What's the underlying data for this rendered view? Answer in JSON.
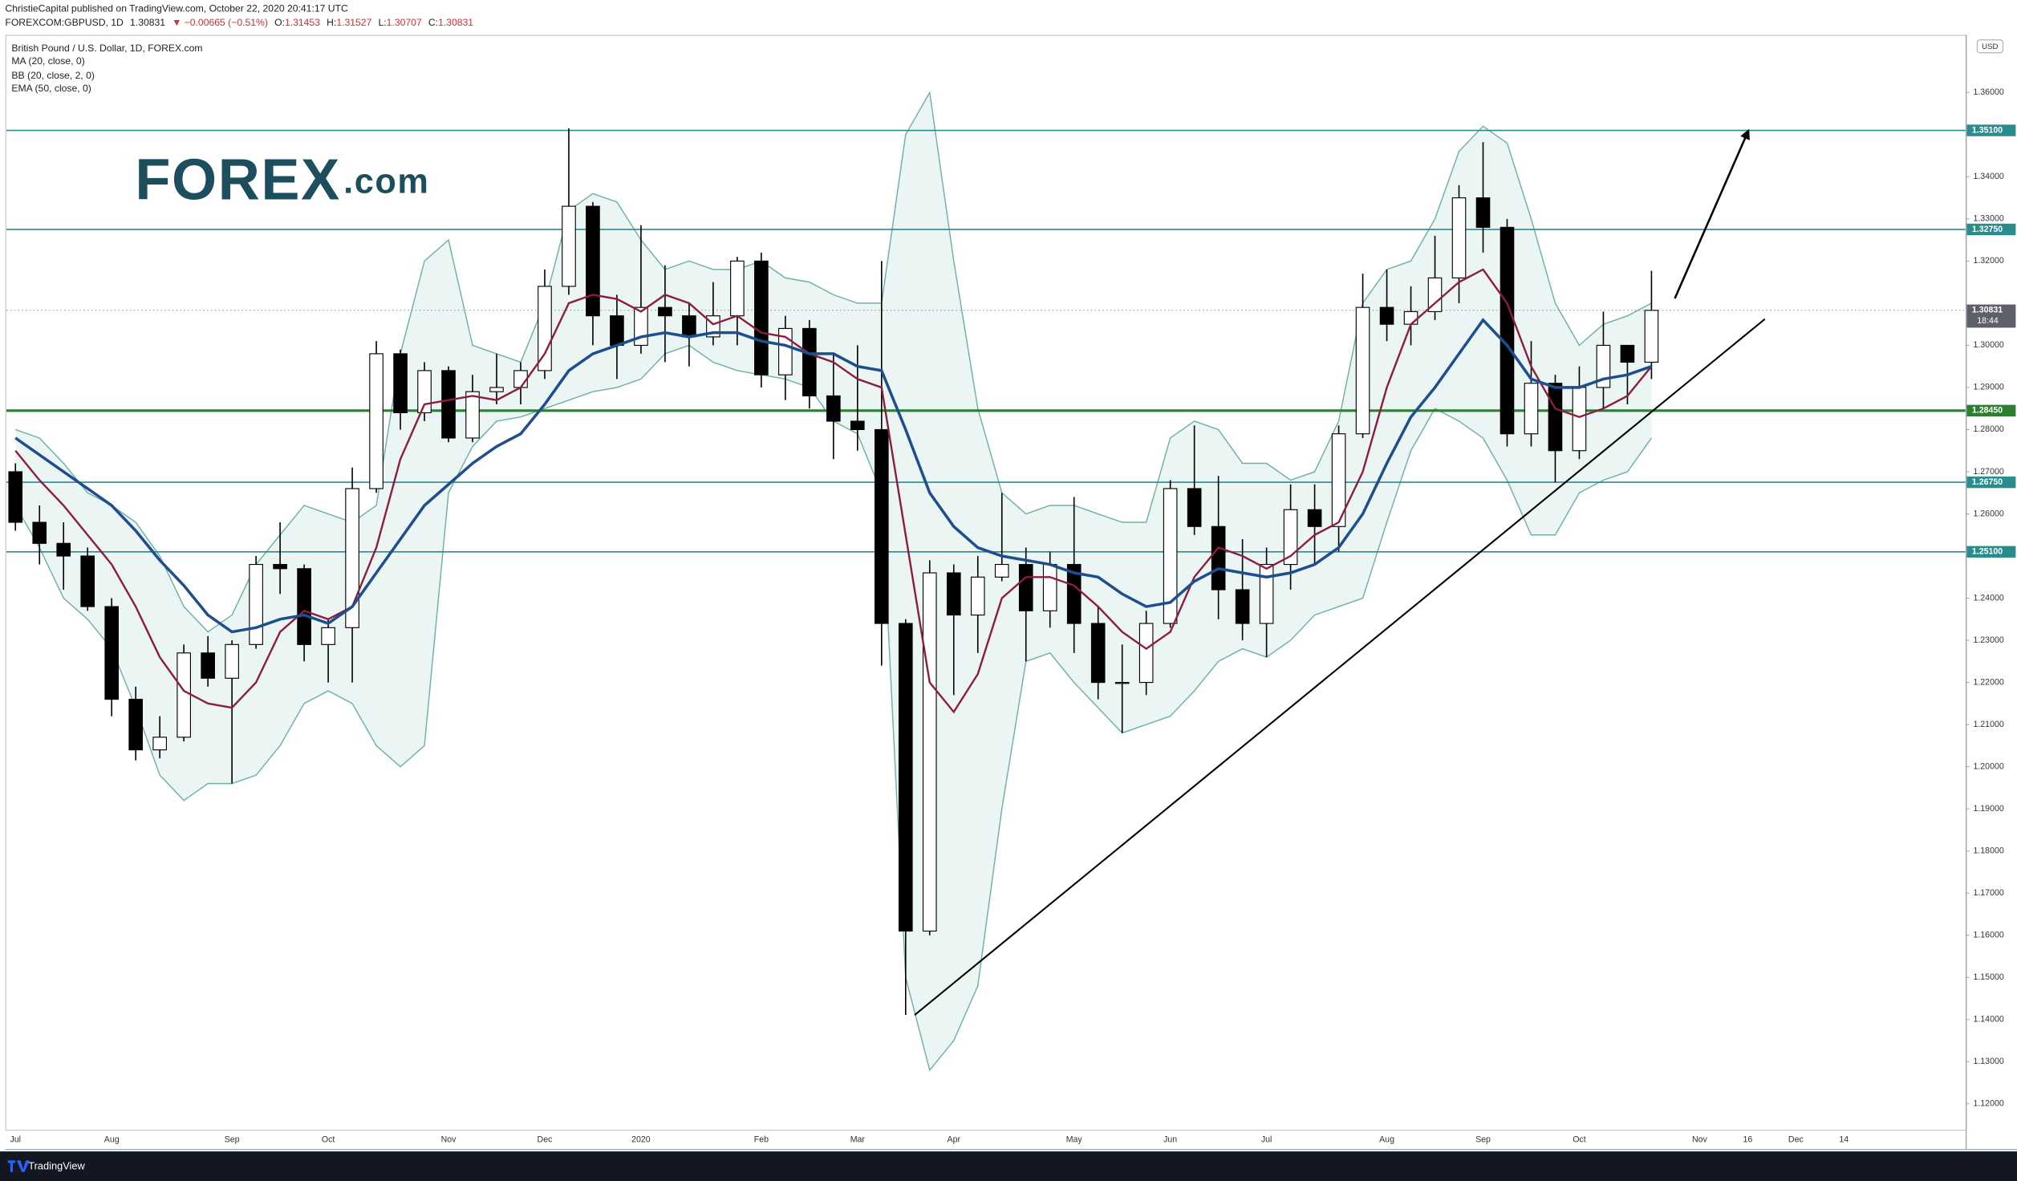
{
  "header": {
    "publisher": "ChristieCapital published on TradingView.com, October 22, 2020 20:41:17 UTC",
    "symbol": "FOREXCOM:GBPUSD, 1D",
    "last": "1.30831",
    "change": "▼ −0.00665 (−0.51%)",
    "ohlc": [
      {
        "label": "O:",
        "value": "1.31453"
      },
      {
        "label": "H:",
        "value": "1.31527"
      },
      {
        "label": "L:",
        "value": "1.30707"
      },
      {
        "label": "C:",
        "value": "1.30831"
      }
    ]
  },
  "logo": {
    "main": "FOREX",
    "suffix": ".com"
  },
  "footer": {
    "brand": "TradingView"
  },
  "chart_data": {
    "type": "candlestick",
    "title": "British Pound / U.S. Dollar, 1D, FOREX.com",
    "currency": "USD",
    "categories": [
      "Jul",
      null,
      null,
      null,
      "Aug",
      null,
      null,
      null,
      null,
      "Sep",
      null,
      null,
      null,
      "Oct",
      null,
      null,
      null,
      null,
      "Nov",
      null,
      null,
      null,
      "Dec",
      null,
      null,
      null,
      "2020",
      null,
      null,
      null,
      null,
      "Feb",
      null,
      null,
      null,
      "Mar",
      null,
      null,
      null,
      "Apr",
      null,
      null,
      null,
      null,
      "May",
      null,
      null,
      null,
      "Jun",
      null,
      null,
      null,
      "Jul",
      null,
      null,
      null,
      null,
      "Aug",
      null,
      null,
      null,
      "Sep",
      null,
      null,
      null,
      "Oct",
      null,
      null,
      null,
      null,
      "Nov",
      null,
      "16",
      null,
      "Dec",
      null,
      "14",
      null,
      null,
      null,
      null,
      null
    ],
    "open": [
      1.27,
      1.258,
      1.253,
      1.25,
      1.238,
      1.216,
      1.204,
      1.207,
      1.227,
      1.221,
      1.229,
      1.248,
      1.247,
      1.229,
      1.233,
      1.266,
      1.298,
      1.284,
      1.294,
      1.278,
      1.289,
      1.29,
      1.294,
      1.314,
      1.333,
      1.307,
      1.3,
      1.309,
      1.307,
      1.302,
      1.307,
      1.32,
      1.293,
      1.304,
      1.288,
      1.282,
      1.28,
      1.234,
      1.161,
      1.246,
      1.236,
      1.245,
      1.248,
      1.237,
      1.248,
      1.234,
      1.22,
      1.22,
      1.234,
      1.266,
      1.257,
      1.242,
      1.234,
      1.248,
      1.261,
      1.257,
      1.279,
      1.309,
      1.305,
      1.308,
      1.316,
      1.335,
      1.328,
      1.279,
      1.291,
      1.275,
      1.29,
      1.3,
      1.296,
      null,
      null,
      null,
      null,
      null,
      null,
      null,
      null,
      null,
      null,
      null,
      null,
      null
    ],
    "high": [
      1.272,
      1.262,
      1.258,
      1.252,
      1.24,
      1.219,
      1.212,
      1.229,
      1.231,
      1.23,
      1.25,
      1.258,
      1.248,
      1.235,
      1.271,
      1.301,
      1.299,
      1.296,
      1.295,
      1.293,
      1.298,
      1.296,
      1.318,
      1.3515,
      1.334,
      1.312,
      1.3285,
      1.319,
      1.31,
      1.315,
      1.321,
      1.322,
      1.307,
      1.306,
      1.298,
      1.3,
      1.32,
      1.235,
      1.249,
      1.248,
      1.25,
      1.265,
      1.252,
      1.251,
      1.264,
      1.238,
      1.229,
      1.237,
      1.268,
      1.281,
      1.269,
      1.254,
      1.252,
      1.267,
      1.267,
      1.281,
      1.317,
      1.318,
      1.314,
      1.326,
      1.338,
      1.3482,
      1.33,
      1.301,
      1.293,
      1.295,
      1.308,
      1.3,
      1.3177,
      null,
      null,
      null,
      null,
      null,
      null,
      null,
      null,
      null,
      null,
      null,
      null,
      null
    ],
    "low": [
      1.256,
      1.248,
      1.242,
      1.237,
      1.212,
      1.2015,
      1.202,
      1.206,
      1.219,
      1.196,
      1.228,
      1.241,
      1.225,
      1.22,
      1.22,
      1.265,
      1.28,
      1.282,
      1.277,
      1.277,
      1.286,
      1.286,
      1.292,
      1.312,
      1.3,
      1.292,
      1.298,
      1.296,
      1.295,
      1.3,
      1.3,
      1.29,
      1.287,
      1.285,
      1.273,
      1.275,
      1.224,
      1.1411,
      1.16,
      1.217,
      1.227,
      1.244,
      1.225,
      1.233,
      1.227,
      1.216,
      1.208,
      1.217,
      1.233,
      1.255,
      1.235,
      1.23,
      1.226,
      1.242,
      1.248,
      1.251,
      1.278,
      1.301,
      1.3,
      1.306,
      1.31,
      1.322,
      1.276,
      1.276,
      1.2675,
      1.273,
      1.285,
      1.286,
      1.292,
      null,
      null,
      null,
      null,
      null,
      null,
      null,
      null,
      null,
      null,
      null,
      null,
      null
    ],
    "close": [
      1.258,
      1.253,
      1.25,
      1.238,
      1.216,
      1.204,
      1.207,
      1.227,
      1.221,
      1.229,
      1.248,
      1.247,
      1.229,
      1.233,
      1.266,
      1.298,
      1.284,
      1.294,
      1.278,
      1.289,
      1.29,
      1.294,
      1.314,
      1.333,
      1.307,
      1.3,
      1.309,
      1.307,
      1.302,
      1.307,
      1.32,
      1.293,
      1.304,
      1.288,
      1.282,
      1.28,
      1.234,
      1.161,
      1.246,
      1.236,
      1.245,
      1.248,
      1.237,
      1.248,
      1.234,
      1.22,
      1.22,
      1.234,
      1.266,
      1.257,
      1.242,
      1.234,
      1.248,
      1.261,
      1.257,
      1.279,
      1.309,
      1.305,
      1.308,
      1.316,
      1.335,
      1.328,
      1.279,
      1.291,
      1.275,
      1.29,
      1.3,
      1.296,
      1.3083,
      null,
      null,
      null,
      null,
      null,
      null,
      null,
      null,
      null,
      null,
      null,
      null,
      null
    ],
    "up_color": "#ffffff",
    "down_color": "#000000",
    "wick_color": "#000000",
    "overlays": [
      {
        "name": "MA (20, close, 0)",
        "color": "#8c1d40",
        "values": [
          1.275,
          1.268,
          1.262,
          1.255,
          1.248,
          1.238,
          1.226,
          1.218,
          1.215,
          1.214,
          1.22,
          1.232,
          1.237,
          1.235,
          1.238,
          1.252,
          1.273,
          1.286,
          1.287,
          1.288,
          1.287,
          1.29,
          1.298,
          1.31,
          1.312,
          1.311,
          1.308,
          1.312,
          1.31,
          1.305,
          1.307,
          1.303,
          1.302,
          1.298,
          1.296,
          1.292,
          1.29,
          1.255,
          1.22,
          1.213,
          1.222,
          1.24,
          1.245,
          1.245,
          1.243,
          1.238,
          1.232,
          1.228,
          1.232,
          1.245,
          1.252,
          1.25,
          1.247,
          1.25,
          1.255,
          1.258,
          1.27,
          1.29,
          1.305,
          1.31,
          1.315,
          1.318,
          1.31,
          1.295,
          1.285,
          1.283,
          1.285,
          1.288,
          1.295,
          null,
          null,
          null,
          null,
          null,
          null,
          null,
          null,
          null,
          null,
          null,
          null,
          null
        ]
      },
      {
        "name": "BB (20, close, 2, 0)",
        "color": "#6fb0a8",
        "fill": "#e3f2f0",
        "upper": [
          1.28,
          1.278,
          1.272,
          1.265,
          1.262,
          1.258,
          1.25,
          1.238,
          1.232,
          1.236,
          1.248,
          1.255,
          1.262,
          1.26,
          1.258,
          1.262,
          1.298,
          1.32,
          1.325,
          1.3,
          1.298,
          1.296,
          1.31,
          1.332,
          1.336,
          1.334,
          1.325,
          1.318,
          1.32,
          1.318,
          1.318,
          1.32,
          1.316,
          1.315,
          1.312,
          1.31,
          1.31,
          1.35,
          1.36,
          1.32,
          1.285,
          1.265,
          1.26,
          1.262,
          1.262,
          1.26,
          1.258,
          1.258,
          1.278,
          1.282,
          1.28,
          1.272,
          1.272,
          1.268,
          1.27,
          1.282,
          1.31,
          1.318,
          1.32,
          1.33,
          1.346,
          1.352,
          1.348,
          1.33,
          1.31,
          1.3,
          1.305,
          1.307,
          1.31,
          null,
          null,
          null,
          null,
          null,
          null,
          null,
          null,
          null,
          null,
          null,
          null,
          null
        ],
        "lower": [
          1.262,
          1.252,
          1.24,
          1.235,
          1.228,
          1.214,
          1.198,
          1.192,
          1.196,
          1.196,
          1.198,
          1.205,
          1.215,
          1.218,
          1.215,
          1.205,
          1.2,
          1.205,
          1.265,
          1.276,
          1.282,
          1.283,
          1.285,
          1.287,
          1.289,
          1.29,
          1.292,
          1.298,
          1.3,
          1.296,
          1.294,
          1.293,
          1.292,
          1.29,
          1.282,
          1.279,
          1.265,
          1.15,
          1.128,
          1.135,
          1.148,
          1.19,
          1.225,
          1.227,
          1.22,
          1.214,
          1.208,
          1.21,
          1.212,
          1.218,
          1.225,
          1.228,
          1.226,
          1.23,
          1.236,
          1.238,
          1.24,
          1.258,
          1.275,
          1.285,
          1.282,
          1.278,
          1.268,
          1.255,
          1.255,
          1.265,
          1.268,
          1.27,
          1.278,
          null,
          null,
          null,
          null,
          null,
          null,
          null,
          null,
          null,
          null,
          null,
          null,
          null
        ]
      },
      {
        "name": "EMA (50, close, 0)",
        "color": "#1f4e8c",
        "values": [
          1.278,
          1.274,
          1.27,
          1.266,
          1.262,
          1.256,
          1.249,
          1.243,
          1.236,
          1.232,
          1.233,
          1.235,
          1.236,
          1.234,
          1.238,
          1.246,
          1.254,
          1.262,
          1.267,
          1.272,
          1.276,
          1.279,
          1.286,
          1.294,
          1.298,
          1.3,
          1.302,
          1.303,
          1.302,
          1.303,
          1.303,
          1.301,
          1.3,
          1.298,
          1.298,
          1.295,
          1.294,
          1.28,
          1.265,
          1.257,
          1.252,
          1.25,
          1.249,
          1.248,
          1.246,
          1.245,
          1.241,
          1.238,
          1.239,
          1.244,
          1.247,
          1.246,
          1.245,
          1.246,
          1.248,
          1.252,
          1.26,
          1.272,
          1.283,
          1.29,
          1.298,
          1.306,
          1.3,
          1.292,
          1.29,
          1.29,
          1.292,
          1.293,
          1.295,
          null,
          null,
          null,
          null,
          null,
          null,
          null,
          null,
          null,
          null,
          null,
          null,
          null
        ]
      }
    ],
    "levels": [
      {
        "value": 1.351,
        "label": "1.35100",
        "color": "#2a8c8c"
      },
      {
        "value": 1.3275,
        "label": "1.32750",
        "color": "#2a8c8c"
      },
      {
        "value": 1.2845,
        "label": "1.28450",
        "color": "#2e7d32"
      },
      {
        "value": 1.2675,
        "label": "1.26750",
        "color": "#2a8c8c"
      },
      {
        "value": 1.251,
        "label": "1.25100",
        "color": "#2a8c8c"
      }
    ],
    "last_price": {
      "value": 1.30831,
      "label": "1.30831",
      "countdown": "18:44"
    },
    "ylim": [
      1.1139,
      1.3734
    ],
    "yticks": [
      {
        "value": 1.12,
        "label": "1.12000"
      },
      {
        "value": 1.13,
        "label": "1.13000"
      },
      {
        "value": 1.14,
        "label": "1.14000"
      },
      {
        "value": 1.15,
        "label": "1.15000"
      },
      {
        "value": 1.16,
        "label": "1.16000"
      },
      {
        "value": 1.17,
        "label": "1.17000"
      },
      {
        "value": 1.18,
        "label": "1.18000"
      },
      {
        "value": 1.19,
        "label": "1.19000"
      },
      {
        "value": 1.2,
        "label": "1.20000"
      },
      {
        "value": 1.21,
        "label": "1.21000"
      },
      {
        "value": 1.22,
        "label": "1.22000"
      },
      {
        "value": 1.23,
        "label": "1.23000"
      },
      {
        "value": 1.24,
        "label": "1.24000"
      },
      {
        "value": 1.26,
        "label": "1.26000"
      },
      {
        "value": 1.27,
        "label": "1.27000"
      },
      {
        "value": 1.28,
        "label": "1.28000"
      },
      {
        "value": 1.29,
        "label": "1.29000"
      },
      {
        "value": 1.3,
        "label": "1.30000"
      },
      {
        "value": 1.32,
        "label": "1.32000"
      },
      {
        "value": 1.33,
        "label": "1.33000"
      },
      {
        "value": 1.34,
        "label": "1.34000"
      },
      {
        "value": 1.36,
        "label": "1.36000"
      }
    ],
    "grid": false
  }
}
